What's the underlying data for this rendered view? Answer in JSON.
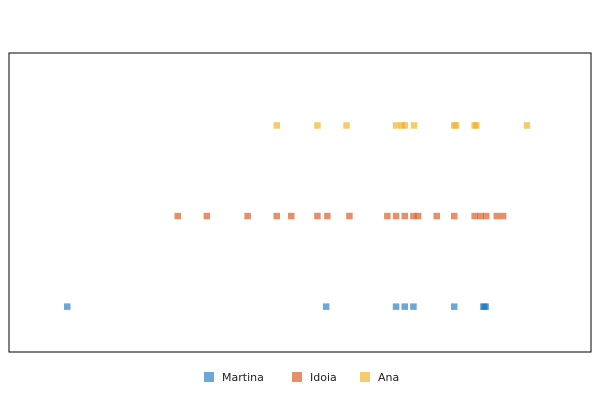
{
  "chart_data": {
    "type": "scatter",
    "title": "",
    "xlabel": "",
    "ylabel": "",
    "xlim": [
      0,
      100
    ],
    "ylim": [
      0.5,
      3.8
    ],
    "grid": false,
    "axes_visible": false,
    "legend": {
      "placement": "bottom-center"
    },
    "series": [
      {
        "name": "Martina",
        "color": "#1f78c1",
        "y": 1,
        "x": [
          10,
          54.5,
          66.5,
          68,
          69.5,
          76.5,
          81.5,
          81.7,
          81.9
        ]
      },
      {
        "name": "Idoia",
        "color": "#d95319",
        "y": 2,
        "x": [
          29,
          34,
          41,
          46,
          48.5,
          53,
          54.7,
          58.5,
          65,
          66.5,
          68,
          69.5,
          70.3,
          73.5,
          76.5,
          80,
          81,
          82,
          83.8,
          84.9
        ]
      },
      {
        "name": "Ana",
        "color": "#edb120",
        "y": 3,
        "x": [
          46,
          53,
          58,
          66.5,
          67.5,
          68,
          69.6,
          76.5,
          76.8,
          80,
          80.3,
          89
        ]
      }
    ]
  }
}
